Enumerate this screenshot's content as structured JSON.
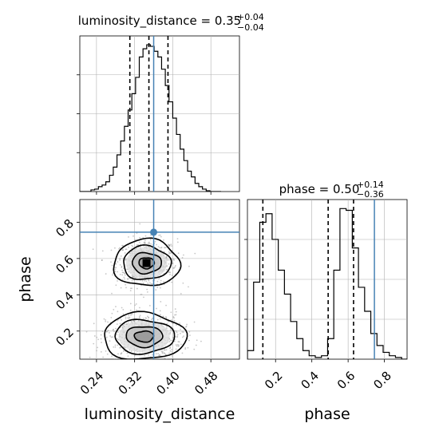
{
  "chart_data": [
    {
      "type": "histogram",
      "panel": "luminosity_distance marginal",
      "title_param": "luminosity_distance",
      "median": "0.35",
      "err_plus": "+0.04",
      "err_minus": "−0.04",
      "x_range": [
        0.205,
        0.54
      ],
      "x_ticks": [
        0.24,
        0.32,
        0.4,
        0.48
      ],
      "bins_left": [
        0.205,
        0.2128,
        0.2206,
        0.2284,
        0.2362,
        0.244,
        0.2518,
        0.2596,
        0.2674,
        0.2752,
        0.283,
        0.2908,
        0.2986,
        0.3064,
        0.3142,
        0.322,
        0.3298,
        0.3376,
        0.3454,
        0.3532,
        0.361,
        0.3688,
        0.3766,
        0.3844,
        0.3922,
        0.4,
        0.4078,
        0.4156,
        0.4234,
        0.4312,
        0.439,
        0.4468,
        0.4546,
        0.4624,
        0.4702,
        0.478,
        0.4858,
        0.4936
      ],
      "bin_width": 0.0078,
      "counts": [
        0,
        0,
        0,
        2,
        3,
        6,
        8,
        12,
        20,
        30,
        45,
        62,
        80,
        100,
        120,
        140,
        165,
        175,
        180,
        178,
        172,
        165,
        150,
        130,
        110,
        90,
        70,
        52,
        38,
        25,
        18,
        10,
        6,
        3,
        1,
        0,
        0,
        0
      ],
      "quantile_lines": [
        0.31,
        0.35,
        0.39
      ],
      "truth": 0.36
    },
    {
      "type": "contour",
      "panel": "2D joint",
      "xlabel": "luminosity_distance",
      "ylabel": "phase",
      "x_range": [
        0.205,
        0.54
      ],
      "y_range": [
        0.045,
        0.925
      ],
      "x_ticks": [
        0.24,
        0.32,
        0.4,
        0.48
      ],
      "y_ticks": [
        0.2,
        0.4,
        0.6,
        0.8
      ],
      "modes": [
        {
          "x": 0.345,
          "y": 0.575,
          "sx": 0.028,
          "sy": 0.06
        },
        {
          "x": 0.34,
          "y": 0.17,
          "sx": 0.035,
          "sy": 0.06
        }
      ],
      "truth": {
        "x": 0.36,
        "y": 0.745
      }
    },
    {
      "type": "histogram",
      "panel": "phase marginal",
      "title_param": "phase",
      "median": "0.50",
      "err_plus": "+0.14",
      "err_minus": "−0.36",
      "x_range": [
        0.045,
        0.925
      ],
      "x_ticks": [
        0.2,
        0.4,
        0.6,
        0.8
      ],
      "bins_left": [
        0.045,
        0.079,
        0.113,
        0.147,
        0.181,
        0.215,
        0.249,
        0.283,
        0.317,
        0.351,
        0.385,
        0.419,
        0.453,
        0.487,
        0.521,
        0.555,
        0.589,
        0.623,
        0.657,
        0.691,
        0.725,
        0.759,
        0.793,
        0.827,
        0.861,
        0.895
      ],
      "bin_width": 0.034,
      "counts": [
        5,
        45,
        80,
        85,
        70,
        52,
        38,
        22,
        12,
        5,
        2,
        1,
        2,
        12,
        52,
        88,
        87,
        65,
        42,
        28,
        15,
        8,
        4,
        2,
        1,
        0
      ],
      "quantile_lines": [
        0.13,
        0.49,
        0.63
      ],
      "truth": 0.745
    }
  ]
}
